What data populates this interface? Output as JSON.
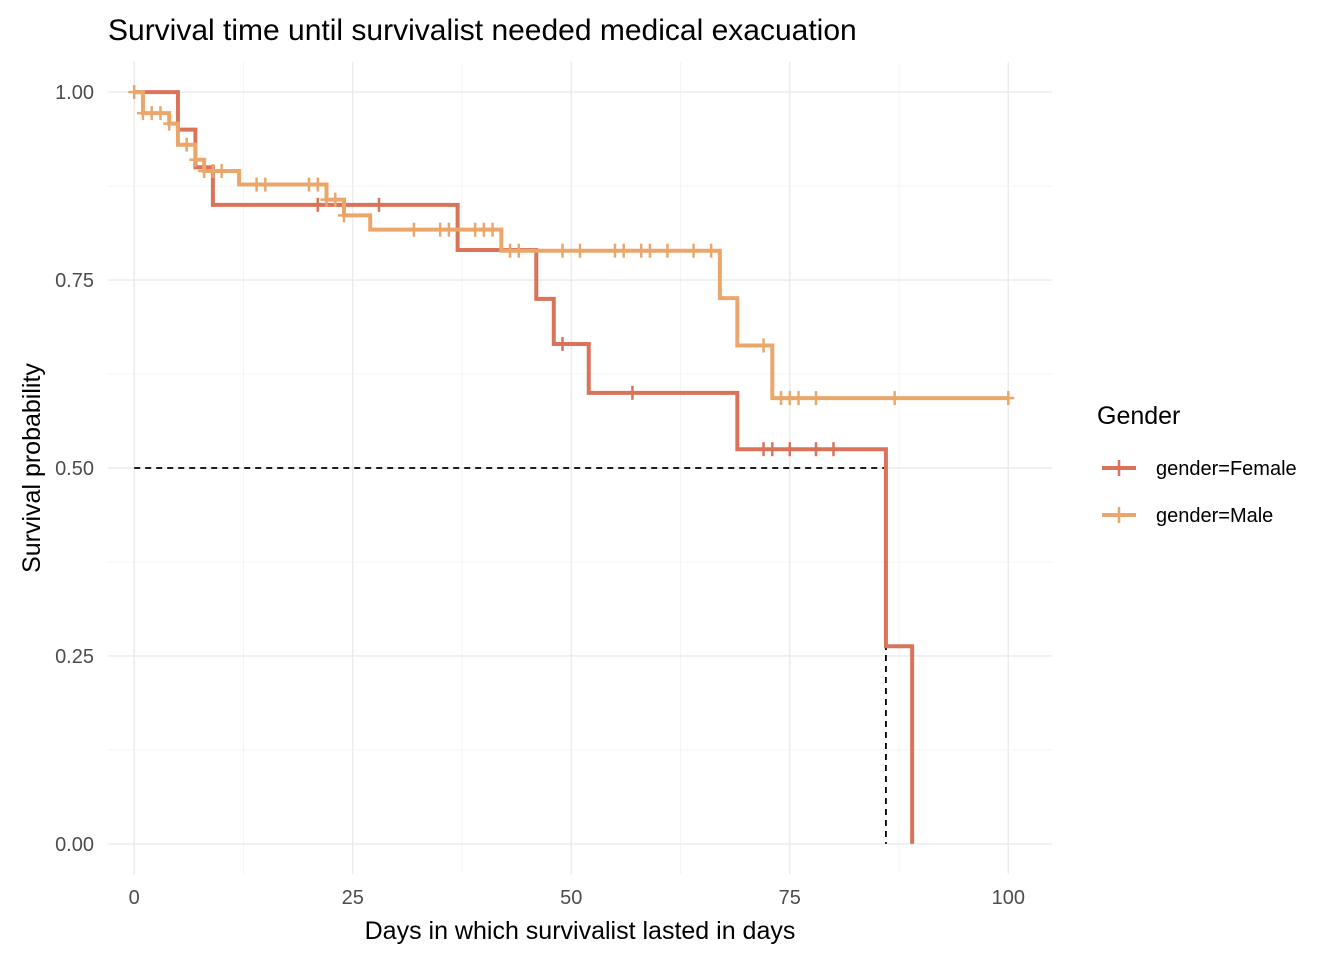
{
  "chart_data": {
    "type": "line",
    "subtype": "kaplan-meier-step",
    "title": "Survival time until survivalist needed medical exacuation",
    "xlabel": "Days in which survivalist lasted in days",
    "ylabel": "Survival probability",
    "xlim": [
      -3,
      105
    ],
    "ylim": [
      -0.04,
      1.04
    ],
    "x_ticks": [
      0,
      25,
      50,
      75,
      100
    ],
    "x_tick_labels": [
      "0",
      "25",
      "50",
      "75",
      "100"
    ],
    "y_ticks": [
      0,
      0.25,
      0.5,
      0.75,
      1
    ],
    "y_tick_labels": [
      "0.00",
      "0.25",
      "0.50",
      "0.75",
      "1.00"
    ],
    "grid": true,
    "legend": {
      "title": "Gender",
      "position": "right",
      "entries": [
        "gender=Female",
        "gender=Male"
      ]
    },
    "series": [
      {
        "name": "gender=Female",
        "color": "#d9735a",
        "steps": [
          [
            0,
            1.0
          ],
          [
            5,
            0.95
          ],
          [
            7,
            0.9
          ],
          [
            9,
            0.85
          ],
          [
            37,
            0.79
          ],
          [
            46,
            0.725
          ],
          [
            48,
            0.665
          ],
          [
            52,
            0.6
          ],
          [
            69,
            0.525
          ],
          [
            86,
            0.263
          ],
          [
            89,
            0.0
          ]
        ],
        "censor_times": [
          21,
          28,
          49,
          57,
          72,
          73,
          75,
          78,
          80
        ]
      },
      {
        "name": "gender=Male",
        "color": "#eba76b",
        "steps": [
          [
            0,
            1.0
          ],
          [
            1,
            0.972
          ],
          [
            4,
            0.958
          ],
          [
            5,
            0.93
          ],
          [
            7,
            0.91
          ],
          [
            8,
            0.895
          ],
          [
            12,
            0.877
          ],
          [
            22,
            0.857
          ],
          [
            24,
            0.836
          ],
          [
            27,
            0.817
          ],
          [
            42,
            0.789
          ],
          [
            67,
            0.726
          ],
          [
            69,
            0.663
          ],
          [
            73,
            0.593
          ]
        ],
        "censor_times": [
          0,
          1,
          2,
          3,
          4,
          6,
          7,
          8,
          9,
          10,
          14,
          15,
          20,
          21,
          22,
          23,
          24,
          32,
          35,
          36,
          39,
          40,
          41,
          43,
          44,
          49,
          51,
          55,
          56,
          58,
          59,
          61,
          64,
          66,
          72,
          74,
          75,
          76,
          78,
          87,
          100
        ],
        "end_time": 100
      }
    ],
    "median_reference": {
      "y": 0.5,
      "x": 86,
      "style": "dashed",
      "color": "#000000"
    }
  }
}
